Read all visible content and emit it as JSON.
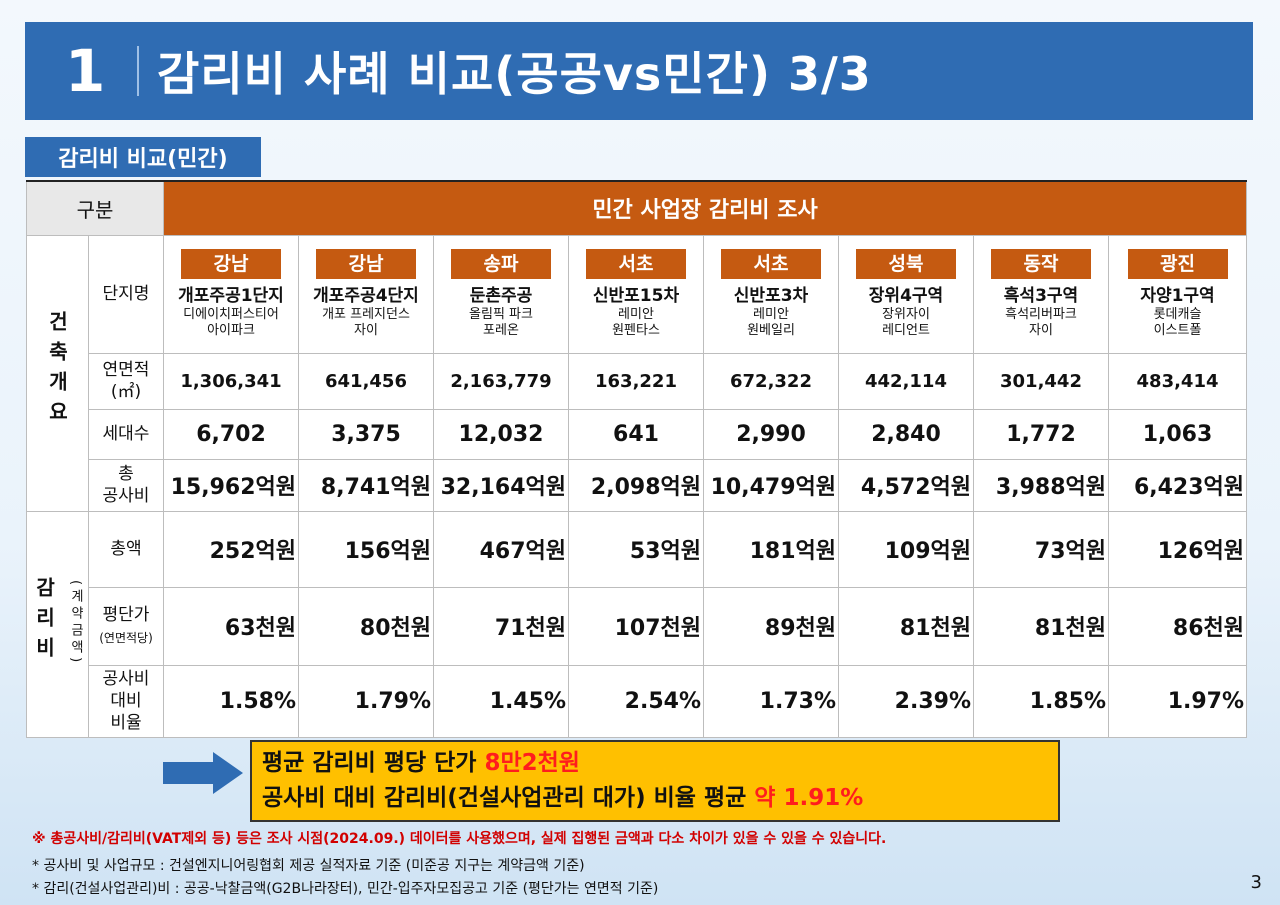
{
  "title": {
    "number": "1",
    "text": "감리비 사례 비교(공공vs민간) 3/3"
  },
  "section_label": "감리비 비교(민간)",
  "table": {
    "header_gubun": "구분",
    "header_main": "민간 사업장 감리비 조사",
    "group_building": "건축개요",
    "group_fee": "감리비",
    "group_fee_sub": "(계약금액)",
    "row_labels": {
      "name": "단지명",
      "area_line1": "연면적",
      "area_line2": "(㎡)",
      "households": "세대수",
      "cost_line1": "총",
      "cost_line2": "공사비",
      "total": "총액",
      "unit_price": "평단가",
      "unit_price_sub": "(연면적당)",
      "ratio_line1": "공사비",
      "ratio_line2": "대비",
      "ratio_line3": "비율"
    },
    "columns": [
      {
        "region": "강남",
        "name1": "개포주공1단지",
        "name2": "디에이치퍼스티어",
        "name3": "아이파크",
        "area": "1,306,341",
        "households": "6,702",
        "cost": "15,962억원",
        "total": "252억원",
        "unit_price": "63천원",
        "ratio": "1.58%"
      },
      {
        "region": "강남",
        "name1": "개포주공4단지",
        "name2": "개포 프레지던스",
        "name3": "자이",
        "area": "641,456",
        "households": "3,375",
        "cost": "8,741억원",
        "total": "156억원",
        "unit_price": "80천원",
        "ratio": "1.79%"
      },
      {
        "region": "송파",
        "name1": "둔촌주공",
        "name2": "올림픽 파크",
        "name3": "포레온",
        "area": "2,163,779",
        "households": "12,032",
        "cost": "32,164억원",
        "total": "467억원",
        "unit_price": "71천원",
        "ratio": "1.45%"
      },
      {
        "region": "서초",
        "name1": "신반포15차",
        "name2": "레미안",
        "name3": "원펜타스",
        "area": "163,221",
        "households": "641",
        "cost": "2,098억원",
        "total": "53억원",
        "unit_price": "107천원",
        "ratio": "2.54%"
      },
      {
        "region": "서초",
        "name1": "신반포3차",
        "name2": "레미안",
        "name3": "원베일리",
        "area": "672,322",
        "households": "2,990",
        "cost": "10,479억원",
        "total": "181억원",
        "unit_price": "89천원",
        "ratio": "1.73%"
      },
      {
        "region": "성북",
        "name1": "장위4구역",
        "name2": "장위자이",
        "name3": "레디언트",
        "area": "442,114",
        "households": "2,840",
        "cost": "4,572억원",
        "total": "109억원",
        "unit_price": "81천원",
        "ratio": "2.39%"
      },
      {
        "region": "동작",
        "name1": "흑석3구역",
        "name2": "흑석리버파크",
        "name3": "자이",
        "area": "301,442",
        "households": "1,772",
        "cost": "3,988억원",
        "total": "73억원",
        "unit_price": "81천원",
        "ratio": "1.85%"
      },
      {
        "region": "광진",
        "name1": "자양1구역",
        "name2": "롯데캐슬",
        "name3": "이스트폴",
        "area": "483,414",
        "households": "1,063",
        "cost": "6,423억원",
        "total": "126억원",
        "unit_price": "86천원",
        "ratio": "1.97%"
      }
    ]
  },
  "summary": {
    "line1_prefix": "평균 감리비 평당 단가 ",
    "line1_highlight": "8만2천원",
    "line2_prefix": "공사비 대비 감리비(건설사업관리 대가) 비율 평균 ",
    "line2_highlight": "약 1.91%"
  },
  "notes": {
    "red": "※  총공사비/감리비(VAT제외 등) 등은 조사 시점(2024.09.) 데이터를 사용했으며, 실제 집행된 금액과 다소 차이가 있을 수 있을 수 있습니다.",
    "line1": "* 공사비 및 사업규모 : 건설엔지니어링협회 제공 실적자료 기준 (미준공 지구는 계약금액 기준)",
    "line2": "* 감리(건설사업관리)비 : 공공-낙찰금액(G2B나라장터), 민간-입주자모집공고 기준 (평단가는 연면적 기준)"
  },
  "page_number": "3",
  "colors": {
    "title_bg": "#2f6cb3",
    "header_orange": "#c55a11",
    "summary_bg": "#ffc000",
    "highlight_red": "#ff1d1d",
    "arrow_blue": "#2f6cb3"
  }
}
